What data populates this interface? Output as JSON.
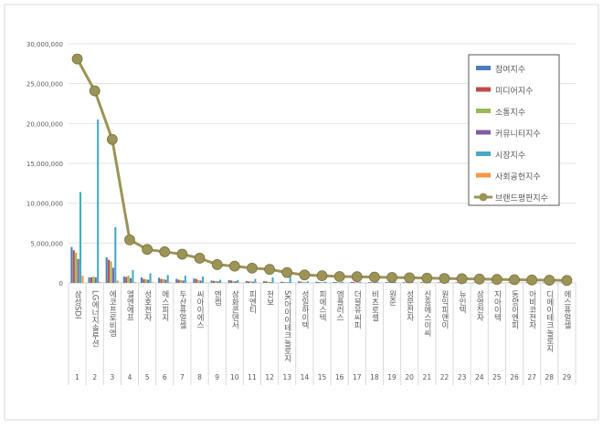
{
  "chart_data": {
    "type": "bar",
    "title": "",
    "xlabel": "",
    "ylabel": "",
    "ylim": [
      0,
      30000000
    ],
    "yticks": [
      "0",
      "5,000,000",
      "10,000,000",
      "15,000,000",
      "20,000,000",
      "25,000,000",
      "30,000,000"
    ],
    "grid": true,
    "legend_position": "right",
    "categories": [
      "삼성SDI",
      "LG에너지솔루션",
      "에코프로비엠",
      "엘엔에프",
      "성호전자",
      "에스피지",
      "두산퓨얼셀",
      "씨아이에스",
      "엔켐",
      "삼화콘덴서",
      "피엔티",
      "천보",
      "SK아이이테크놀로지",
      "성일하이텍",
      "피에스텍",
      "엠플러스",
      "더블유씨피",
      "비츠로셀",
      "원준",
      "성문전자",
      "신흥에스이씨",
      "원익피앤이",
      "뉴인텍",
      "삼영전자",
      "지아이텍",
      "동양이엔피",
      "아비코전자",
      "디에이테크놀로지",
      "에스퓨얼셀"
    ],
    "ranks": [
      "1",
      "2",
      "3",
      "4",
      "5",
      "6",
      "7",
      "8",
      "9",
      "10",
      "11",
      "12",
      "13",
      "14",
      "15",
      "16",
      "17",
      "18",
      "19",
      "20",
      "21",
      "22",
      "23",
      "24",
      "25",
      "26",
      "27",
      "28",
      "29"
    ],
    "series": [
      {
        "name": "참여지수",
        "type": "bar",
        "color": "#4a7ebb",
        "values": [
          4500000,
          700000,
          3200000,
          800000,
          700000,
          650000,
          500000,
          550000,
          300000,
          350000,
          250000,
          200000,
          150000,
          200000,
          150000,
          120000,
          120000,
          100000,
          100000,
          90000,
          90000,
          80000,
          80000,
          70000,
          60000,
          60000,
          50000,
          50000,
          40000
        ]
      },
      {
        "name": "미디어지수",
        "type": "bar",
        "color": "#be4b48",
        "values": [
          4100000,
          700000,
          2900000,
          750000,
          500000,
          500000,
          400000,
          500000,
          250000,
          300000,
          200000,
          200000,
          100000,
          150000,
          100000,
          100000,
          100000,
          80000,
          80000,
          70000,
          70000,
          60000,
          60000,
          60000,
          50000,
          50000,
          40000,
          40000,
          30000
        ]
      },
      {
        "name": "소통지수",
        "type": "bar",
        "color": "#98b954",
        "values": [
          3800000,
          800000,
          2700000,
          900000,
          450000,
          450000,
          350000,
          350000,
          250000,
          250000,
          200000,
          150000,
          100000,
          100000,
          100000,
          80000,
          80000,
          70000,
          70000,
          60000,
          60000,
          50000,
          50000,
          50000,
          40000,
          40000,
          40000,
          30000,
          30000
        ]
      },
      {
        "name": "커뮤니티지수",
        "type": "bar",
        "color": "#7d60a0",
        "values": [
          3000000,
          700000,
          1900000,
          600000,
          400000,
          400000,
          300000,
          300000,
          200000,
          200000,
          150000,
          100000,
          80000,
          80000,
          70000,
          60000,
          60000,
          50000,
          50000,
          50000,
          40000,
          40000,
          40000,
          30000,
          30000,
          30000,
          30000,
          20000,
          20000
        ]
      },
      {
        "name": "시장지수",
        "type": "bar",
        "color": "#46aac5",
        "values": [
          11400000,
          20500000,
          7000000,
          1600000,
          1200000,
          1000000,
          900000,
          800000,
          400000,
          350000,
          500000,
          700000,
          800000,
          200000,
          150000,
          150000,
          150000,
          120000,
          120000,
          100000,
          100000,
          100000,
          100000,
          80000,
          80000,
          60000,
          60000,
          50000,
          50000
        ]
      },
      {
        "name": "사회공헌지수",
        "type": "bar",
        "color": "#f79646",
        "values": [
          900000,
          100000,
          300000,
          100000,
          80000,
          80000,
          60000,
          60000,
          40000,
          40000,
          30000,
          30000,
          30000,
          20000,
          20000,
          20000,
          20000,
          20000,
          20000,
          10000,
          10000,
          10000,
          10000,
          10000,
          10000,
          10000,
          10000,
          10000,
          10000
        ]
      },
      {
        "name": "브랜드평판지수",
        "type": "line",
        "color": "#9b9456",
        "values": [
          28100000,
          24100000,
          18000000,
          5400000,
          4200000,
          3900000,
          3600000,
          3100000,
          2300000,
          2100000,
          1850000,
          1700000,
          1300000,
          1000000,
          900000,
          800000,
          780000,
          720000,
          680000,
          640000,
          600000,
          560000,
          520000,
          480000,
          440000,
          400000,
          370000,
          340000,
          310000
        ]
      }
    ]
  }
}
